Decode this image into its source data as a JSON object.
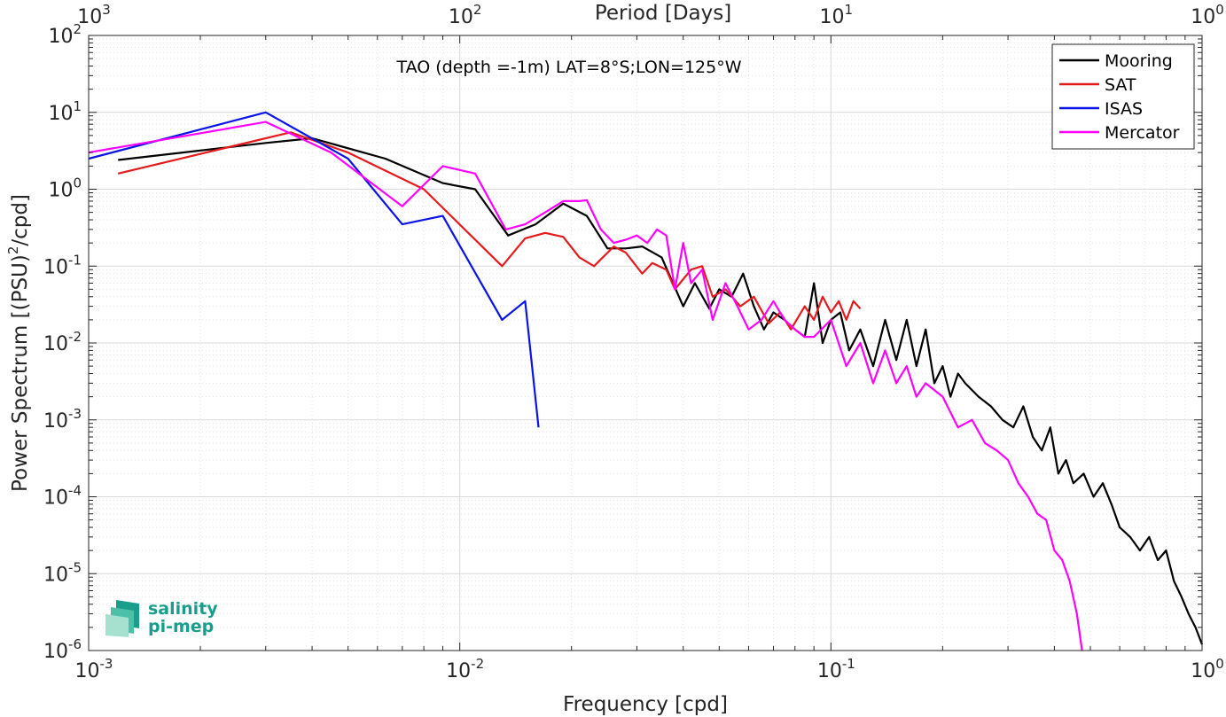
{
  "chart_data": {
    "type": "line",
    "annotation": "TAO (depth =-1m) LAT=8°S;LON=125°W",
    "xlabel": "Frequency [cpd]",
    "ylabel_prefix": "Power Spectrum [(PSU)",
    "ylabel_exp": "2",
    "ylabel_suffix": "/cpd]",
    "x2label": "Period [Days]",
    "xscale": "log",
    "yscale": "log",
    "xlim": [
      0.001,
      1
    ],
    "ylim": [
      1e-06,
      100
    ],
    "grid": true,
    "legend_position": "top-right",
    "x_ticks": [
      {
        "value": 0.001,
        "base": "10",
        "exp": "-3"
      },
      {
        "value": 0.01,
        "base": "10",
        "exp": "-2"
      },
      {
        "value": 0.1,
        "base": "10",
        "exp": "-1"
      },
      {
        "value": 1,
        "base": "10",
        "exp": "0"
      }
    ],
    "x2_ticks": [
      {
        "value": 0.001,
        "base": "10",
        "exp": "3"
      },
      {
        "value": 0.01,
        "base": "10",
        "exp": "2"
      },
      {
        "value": 0.1,
        "base": "10",
        "exp": "1"
      },
      {
        "value": 1,
        "base": "10",
        "exp": "0"
      }
    ],
    "y_ticks": [
      {
        "value": 1e-06,
        "base": "10",
        "exp": "-6"
      },
      {
        "value": 1e-05,
        "base": "10",
        "exp": "-5"
      },
      {
        "value": 0.0001,
        "base": "10",
        "exp": "-4"
      },
      {
        "value": 0.001,
        "base": "10",
        "exp": "-3"
      },
      {
        "value": 0.01,
        "base": "10",
        "exp": "-2"
      },
      {
        "value": 0.1,
        "base": "10",
        "exp": "-1"
      },
      {
        "value": 1,
        "base": "10",
        "exp": "0"
      },
      {
        "value": 10,
        "base": "10",
        "exp": "1"
      },
      {
        "value": 100,
        "base": "10",
        "exp": "2"
      }
    ],
    "series": [
      {
        "name": "Mooring",
        "color": "#000000",
        "x": [
          0.0012,
          0.003,
          0.004,
          0.0063,
          0.009,
          0.011,
          0.0135,
          0.016,
          0.019,
          0.022,
          0.025,
          0.028,
          0.031,
          0.035,
          0.04,
          0.043,
          0.047,
          0.05,
          0.054,
          0.058,
          0.062,
          0.066,
          0.07,
          0.075,
          0.08,
          0.085,
          0.09,
          0.095,
          0.1,
          0.106,
          0.112,
          0.12,
          0.13,
          0.14,
          0.15,
          0.16,
          0.17,
          0.18,
          0.19,
          0.2,
          0.21,
          0.22,
          0.23,
          0.25,
          0.27,
          0.29,
          0.31,
          0.33,
          0.35,
          0.37,
          0.39,
          0.41,
          0.43,
          0.45,
          0.48,
          0.51,
          0.54,
          0.57,
          0.6,
          0.64,
          0.68,
          0.72,
          0.76,
          0.8,
          0.84,
          0.88,
          0.92,
          0.96,
          1.0
        ],
        "y": [
          2.4,
          4.0,
          4.6,
          2.5,
          1.2,
          1.0,
          0.25,
          0.35,
          0.65,
          0.45,
          0.17,
          0.17,
          0.18,
          0.13,
          0.03,
          0.06,
          0.028,
          0.05,
          0.04,
          0.08,
          0.03,
          0.015,
          0.025,
          0.02,
          0.015,
          0.012,
          0.06,
          0.01,
          0.02,
          0.025,
          0.008,
          0.015,
          0.005,
          0.02,
          0.006,
          0.02,
          0.005,
          0.015,
          0.003,
          0.005,
          0.002,
          0.004,
          0.003,
          0.002,
          0.0015,
          0.001,
          0.0008,
          0.0015,
          0.0006,
          0.0004,
          0.0008,
          0.0002,
          0.0003,
          0.00015,
          0.0002,
          0.0001,
          0.00015,
          8e-05,
          4e-05,
          3e-05,
          2e-05,
          3e-05,
          1.5e-05,
          2e-05,
          8e-06,
          5e-06,
          3e-06,
          2e-06,
          1.2e-06
        ]
      },
      {
        "name": "SAT",
        "color": "#e41a1c",
        "x": [
          0.0012,
          0.0035,
          0.005,
          0.008,
          0.013,
          0.015,
          0.017,
          0.019,
          0.021,
          0.023,
          0.026,
          0.028,
          0.031,
          0.033,
          0.036,
          0.038,
          0.042,
          0.045,
          0.048,
          0.052,
          0.057,
          0.062,
          0.068,
          0.073,
          0.078,
          0.085,
          0.09,
          0.095,
          0.1,
          0.105,
          0.11,
          0.115,
          0.12
        ],
        "y": [
          1.6,
          5.5,
          3.0,
          1.0,
          0.1,
          0.23,
          0.27,
          0.24,
          0.13,
          0.1,
          0.18,
          0.15,
          0.08,
          0.11,
          0.09,
          0.05,
          0.09,
          0.1,
          0.04,
          0.05,
          0.03,
          0.04,
          0.018,
          0.025,
          0.015,
          0.03,
          0.02,
          0.04,
          0.025,
          0.035,
          0.02,
          0.035,
          0.028
        ]
      },
      {
        "name": "ISAS",
        "color": "#0a14e6",
        "x": [
          0.001,
          0.003,
          0.005,
          0.007,
          0.009,
          0.013,
          0.015,
          0.0163
        ],
        "y": [
          2.5,
          10.0,
          2.5,
          0.35,
          0.45,
          0.02,
          0.035,
          0.0008
        ]
      },
      {
        "name": "Mercator",
        "color": "#ff00ff",
        "x": [
          0.001,
          0.003,
          0.0045,
          0.007,
          0.009,
          0.011,
          0.0133,
          0.015,
          0.017,
          0.019,
          0.021,
          0.022,
          0.024,
          0.026,
          0.028,
          0.03,
          0.032,
          0.034,
          0.036,
          0.038,
          0.04,
          0.042,
          0.045,
          0.048,
          0.052,
          0.056,
          0.06,
          0.065,
          0.07,
          0.075,
          0.08,
          0.085,
          0.09,
          0.1,
          0.11,
          0.12,
          0.13,
          0.14,
          0.15,
          0.16,
          0.17,
          0.18,
          0.2,
          0.22,
          0.24,
          0.26,
          0.28,
          0.3,
          0.32,
          0.34,
          0.36,
          0.38,
          0.4,
          0.42,
          0.44,
          0.46,
          0.475
        ],
        "y": [
          3.0,
          7.5,
          3.0,
          0.6,
          2.0,
          1.6,
          0.3,
          0.35,
          0.5,
          0.7,
          0.7,
          0.72,
          0.3,
          0.2,
          0.22,
          0.25,
          0.2,
          0.3,
          0.25,
          0.05,
          0.2,
          0.06,
          0.09,
          0.02,
          0.06,
          0.03,
          0.015,
          0.02,
          0.035,
          0.02,
          0.015,
          0.012,
          0.012,
          0.02,
          0.005,
          0.01,
          0.003,
          0.008,
          0.003,
          0.005,
          0.002,
          0.003,
          0.002,
          0.0008,
          0.001,
          0.0005,
          0.0004,
          0.0003,
          0.00015,
          0.0001,
          6e-05,
          5e-05,
          2e-05,
          1.5e-05,
          8e-06,
          3e-06,
          1e-06
        ]
      }
    ]
  },
  "logo": {
    "line1": "salinity",
    "line2": "pi-mep",
    "color": "#1a9e8c"
  }
}
